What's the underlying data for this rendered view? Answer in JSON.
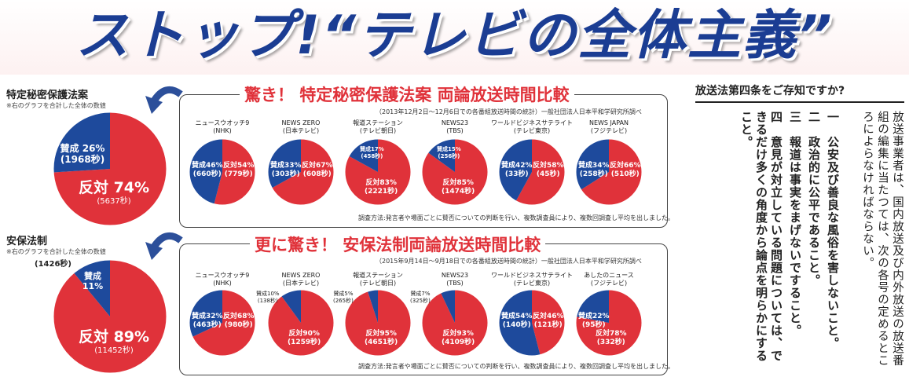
{
  "headline": "ストップ!“テレビの全体主義”",
  "left_panels": [
    {
      "title": "特定秘密保護法案",
      "note": "※右のグラフを合計した全体の数値"
    },
    {
      "title": "安保法制",
      "note": "※右のグラフを合計した全体の数値"
    }
  ],
  "colors": {
    "favor": "#1e4a9c",
    "oppose": "#e0323a",
    "title_red": "#e0323a",
    "headline_blue": "#1b3d93"
  },
  "chart_data": [
    {
      "type": "pie",
      "title": "特定秘密保護法案",
      "slices": [
        {
          "label": "賛成",
          "percent": "26%",
          "seconds": "(1968秒)",
          "value": 26
        },
        {
          "label": "反対",
          "percent": "74%",
          "seconds": "(5637秒)",
          "value": 74
        }
      ]
    },
    {
      "type": "pie",
      "title": "驚き！ 特定秘密保護法案 両論放送時間比較",
      "source": "（2013年12月2日～12月6日での各番組放送時間の統計）一般社団法人日本平和学研究所調べ",
      "method": "調査方法:発言者や場面ごとに賛否についての判断を行い、複数調査員により、複数回調査し平均を出しました。",
      "series": [
        {
          "name": "ニュースウオッチ9\n(NHK)",
          "favor": 46,
          "oppose": 54,
          "favor_text": "賛成46%\n(660秒)",
          "oppose_text": "反対54%\n(779秒)"
        },
        {
          "name": "NEWS ZERO\n(日本テレビ)",
          "favor": 33,
          "oppose": 67,
          "favor_text": "賛成33%\n(303秒)",
          "oppose_text": "反対67%\n(608秒)"
        },
        {
          "name": "報道ステーション\n(テレビ朝日)",
          "favor": 17,
          "oppose": 83,
          "favor_text": "賛成17%\n(458秒)",
          "oppose_text": "反対83%\n(2221秒)"
        },
        {
          "name": "NEWS23\n(TBS)",
          "favor": 15,
          "oppose": 85,
          "favor_text": "賛成15%\n(256秒)",
          "oppose_text": "反対85%\n(1474秒)"
        },
        {
          "name": "ワールドビジネスサテライト\n(テレビ東京)",
          "favor": 42,
          "oppose": 58,
          "favor_text": "賛成42%\n(33秒)",
          "oppose_text": "反対58%\n(45秒)"
        },
        {
          "name": "NEWS JAPAN\n(フジテレビ)",
          "favor": 34,
          "oppose": 66,
          "favor_text": "賛成34%\n(258秒)",
          "oppose_text": "反対66%\n(510秒)"
        }
      ]
    },
    {
      "type": "pie",
      "title": "安保法制",
      "slices": [
        {
          "label": "賛成",
          "percent": "11%",
          "seconds": "(1426秒)",
          "value": 11
        },
        {
          "label": "反対",
          "percent": "89%",
          "seconds": "(11452秒)",
          "value": 89
        }
      ]
    },
    {
      "type": "pie",
      "title": "更に驚き！ 安保法制両論放送時間比較",
      "source": "（2015年9月14日～9月18日での各番組放送時間の統計）一般社団法人日本平和学研究所調べ",
      "method": "調査方法:発言者や場面ごとに賛否についての判断を行い、複数調査員により、複数回調査し平均を出しました。",
      "series": [
        {
          "name": "ニュースウオッチ9\n(NHK)",
          "favor": 32,
          "oppose": 68,
          "favor_text": "賛成32%\n(463秒)",
          "oppose_text": "反対68%\n(980秒)"
        },
        {
          "name": "NEWS ZERO\n(日本テレビ)",
          "favor": 10,
          "oppose": 90,
          "favor_text": "賛成10%\n(138秒)",
          "oppose_text": "反対90%\n(1259秒)"
        },
        {
          "name": "報道ステーション\n(テレビ朝日)",
          "favor": 5,
          "oppose": 95,
          "favor_text": "賛成5%\n(265秒)",
          "oppose_text": "反対95%\n(4651秒)"
        },
        {
          "name": "NEWS23\n(TBS)",
          "favor": 7,
          "oppose": 93,
          "favor_text": "賛成7%\n(325秒)",
          "oppose_text": "反対93%\n(4109秒)"
        },
        {
          "name": "ワールドビジネスサテライト\n(テレビ東京)",
          "favor": 54,
          "oppose": 46,
          "favor_text": "賛成54%\n(140秒)",
          "oppose_text": "反対46%\n(121秒)"
        },
        {
          "name": "あしたのニュース\n(フジテレビ)",
          "favor": 22,
          "oppose": 78,
          "favor_text": "賛成22%\n(95秒)",
          "oppose_text": "反対78%\n(332秒)"
        }
      ]
    }
  ],
  "law": {
    "heading": "放送法第四条をご存知ですか?",
    "intro": "放送事業者は、国内放送及び内外放送の放送番組の編集に当たつては、次の各号の定めるところによらなければならない。",
    "items": [
      {
        "num": "一",
        "text": "公安及び善良な風俗を害しないこと。"
      },
      {
        "num": "二",
        "text": "政治的に公平であること。"
      },
      {
        "num": "三",
        "text": "報道は事実をまげないですること。"
      },
      {
        "num": "四",
        "text": "意見が対立している問題については、できるだけ多くの角度から論点を明らかにすること。"
      }
    ]
  }
}
